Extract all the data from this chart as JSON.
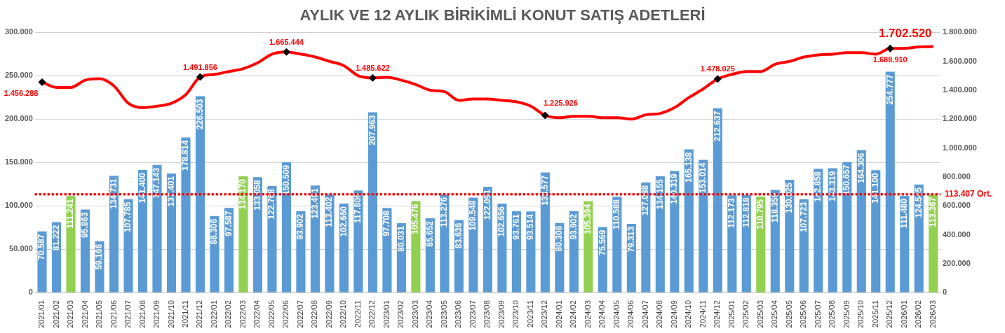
{
  "chart_data": {
    "type": "bar",
    "title": "AYLIK VE 12 AYLIK BİRİKİMLİ KONUT SATIŞ ADETLERİ",
    "categories": [
      "2021/01",
      "2021/02",
      "2021/03",
      "2021/04",
      "2021/05",
      "2021/06",
      "2021/07",
      "2021/08",
      "2021/09",
      "2021/10",
      "2021/11",
      "2021/12",
      "2022/01",
      "2022/02",
      "2022/03",
      "2022/04",
      "2022/05",
      "2022/06",
      "2022/07",
      "2022/08",
      "2022/09",
      "2022/10",
      "2022/11",
      "2022/12",
      "2023/01",
      "2023/02",
      "2023/03",
      "2023/04",
      "2023/05",
      "2023/06",
      "2023/07",
      "2023/08",
      "2023/09",
      "2023/10",
      "2023/11",
      "2023/12",
      "2024/01",
      "2024/02",
      "2024/03",
      "2024/04",
      "2024/05",
      "2024/06",
      "2024/07",
      "2024/08",
      "2024/09",
      "2024/10",
      "2024/11",
      "2024/12",
      "2025/01",
      "2025/02",
      "2025/03",
      "2025/04",
      "2025/05",
      "2025/06",
      "2025/07",
      "2025/08",
      "2025/09",
      "2025/10",
      "2025/11",
      "2025/12",
      "2026/01",
      "2026/02",
      "2026/03"
    ],
    "series": [
      {
        "colors": [
          "#5b9bd5",
          "#5b9bd5",
          "#92d050",
          "#5b9bd5",
          "#5b9bd5",
          "#5b9bd5",
          "#5b9bd5",
          "#5b9bd5",
          "#5b9bd5",
          "#5b9bd5",
          "#5b9bd5",
          "#5b9bd5",
          "#5b9bd5",
          "#5b9bd5",
          "#92d050",
          "#5b9bd5",
          "#5b9bd5",
          "#5b9bd5",
          "#5b9bd5",
          "#5b9bd5",
          "#5b9bd5",
          "#5b9bd5",
          "#5b9bd5",
          "#5b9bd5",
          "#5b9bd5",
          "#5b9bd5",
          "#92d050",
          "#5b9bd5",
          "#5b9bd5",
          "#5b9bd5",
          "#5b9bd5",
          "#5b9bd5",
          "#5b9bd5",
          "#5b9bd5",
          "#5b9bd5",
          "#5b9bd5",
          "#5b9bd5",
          "#5b9bd5",
          "#92d050",
          "#5b9bd5",
          "#5b9bd5",
          "#5b9bd5",
          "#5b9bd5",
          "#5b9bd5",
          "#5b9bd5",
          "#5b9bd5",
          "#5b9bd5",
          "#5b9bd5",
          "#5b9bd5",
          "#5b9bd5",
          "#92d050",
          "#5b9bd5",
          "#5b9bd5",
          "#5b9bd5",
          "#5b9bd5",
          "#5b9bd5",
          "#5b9bd5",
          "#5b9bd5",
          "#5b9bd5",
          "#5b9bd5",
          "#5b9bd5",
          "#5b9bd5",
          "#92d050"
        ],
        "values": [
          70587,
          81222,
          111241,
          95863,
          59166,
          134731,
          107785,
          141400,
          147143,
          137401,
          178814,
          226503,
          88306,
          97587,
          134170,
          133058,
          122768,
          150509,
          93902,
          123491,
          113402,
          102660,
          117806,
          207963,
          97708,
          80031,
          105476,
          85652,
          113276,
          83636,
          109548,
          122091,
          102656,
          93761,
          93514,
          138577,
          80308,
          93902,
          105394,
          75569,
          110588,
          79313,
          127088,
          134155,
          140319,
          165138,
          153014,
          212637,
          112173,
          112818,
          110795,
          118359,
          130025,
          107723,
          142858,
          143319,
          150657,
          164306,
          141100,
          254777,
          111480,
          124545,
          113367
        ],
        "value_labels": [
          "70.587",
          "81.222",
          "111.241",
          "95.863",
          "59.166",
          "134.731",
          "107.785",
          "141.400",
          "147.143",
          "137.401",
          "178.814",
          "226.503",
          "88.306",
          "97.587",
          "134.170",
          "133.058",
          "122.768",
          "150.509",
          "93.902",
          "123.491",
          "113.402",
          "102.660",
          "117.806",
          "207.963",
          "97.708",
          "80.031",
          "105.476",
          "85.652",
          "113.276",
          "83.636",
          "109.548",
          "122.091",
          "102.656",
          "93.761",
          "93.514",
          "138.577",
          "80.308",
          "93.902",
          "105.394",
          "75.569",
          "110.588",
          "79.313",
          "127.088",
          "134.155",
          "140.319",
          "165.138",
          "153.014",
          "212.637",
          "112.173",
          "112.818",
          "110.795",
          "118.359",
          "130.025",
          "107.723",
          "142.858",
          "143.319",
          "150.657",
          "164.306",
          "141.100",
          "254.777",
          "111.480",
          "124.545",
          "113.367"
        ]
      },
      {
        "type": "scatter",
        "axis": "y2",
        "color": "#000000",
        "marker": "diamond",
        "x": [
          "2021/01",
          "2021/12",
          "2022/06",
          "2022/12",
          "2023/12",
          "2024/12",
          "2025/12"
        ],
        "values": [
          1456288,
          1491856,
          1665444,
          1485622,
          1225926,
          1478025,
          1688910
        ],
        "value_labels": [
          "1.456.288",
          "1.491.856",
          "1.665.444",
          "1.485.622",
          "1.225.926",
          "1.478.025",
          "1.688.910"
        ]
      },
      {
        "type": "line",
        "axis": "y2",
        "color": "#ff0000",
        "values": [
          1456288,
          1420000,
          1420000,
          1470000,
          1480000,
          1430000,
          1310000,
          1280000,
          1290000,
          1310000,
          1370000,
          1491856,
          1510000,
          1530000,
          1550000,
          1590000,
          1650000,
          1665444,
          1650000,
          1630000,
          1600000,
          1570000,
          1500000,
          1485622,
          1490000,
          1470000,
          1440000,
          1400000,
          1390000,
          1330000,
          1340000,
          1340000,
          1330000,
          1320000,
          1290000,
          1225926,
          1210000,
          1220000,
          1220000,
          1210000,
          1210000,
          1200000,
          1230000,
          1240000,
          1280000,
          1350000,
          1410000,
          1478025,
          1510000,
          1530000,
          1530000,
          1580000,
          1600000,
          1630000,
          1645000,
          1650000,
          1660000,
          1660000,
          1650000,
          1688910,
          1690000,
          1700000,
          1702520
        ],
        "value_labels": [
          null,
          null,
          null,
          null,
          null,
          null,
          null,
          null,
          null,
          null,
          null,
          null,
          null,
          null,
          null,
          null,
          null,
          null,
          null,
          null,
          null,
          null,
          null,
          null,
          null,
          null,
          null,
          null,
          null,
          null,
          null,
          null,
          null,
          null,
          null,
          null,
          null,
          null,
          null,
          null,
          null,
          null,
          null,
          null,
          null,
          null,
          null,
          null,
          null,
          null,
          null,
          null,
          null,
          null,
          null,
          null,
          null,
          null,
          null,
          null,
          null,
          null,
          "1.702.520"
        ]
      }
    ],
    "ylim": [
      0,
      300000
    ],
    "yticks": [
      {
        "value": 0,
        "label": "0"
      },
      {
        "value": 50000,
        "label": "50.000"
      },
      {
        "value": 100000,
        "label": "100.000"
      },
      {
        "value": 150000,
        "label": "150.000"
      },
      {
        "value": 200000,
        "label": "200.000"
      },
      {
        "value": 250000,
        "label": "250.000"
      },
      {
        "value": 300000,
        "label": "300.000"
      }
    ],
    "y2lim": [
      0,
      1800000
    ],
    "y2ticks": [
      {
        "value": 0,
        "label": "0"
      },
      {
        "value": 200000,
        "label": "200.000"
      },
      {
        "value": 400000,
        "label": "400.000"
      },
      {
        "value": 600000,
        "label": "600.000"
      },
      {
        "value": 800000,
        "label": "800.000"
      },
      {
        "value": 1000000,
        "label": "1.000.000"
      },
      {
        "value": 1200000,
        "label": "1.200.000"
      },
      {
        "value": 1400000,
        "label": "1.400.000"
      },
      {
        "value": 1600000,
        "label": "1.600.000"
      },
      {
        "value": 1800000,
        "label": "1.800.000"
      }
    ],
    "ref_lines": [
      {
        "axis": "y",
        "value": 113407,
        "label": "113.407 Ort.",
        "color": "#ff0000",
        "line_style": "dotted"
      }
    ],
    "grid": "y",
    "legend": false
  }
}
